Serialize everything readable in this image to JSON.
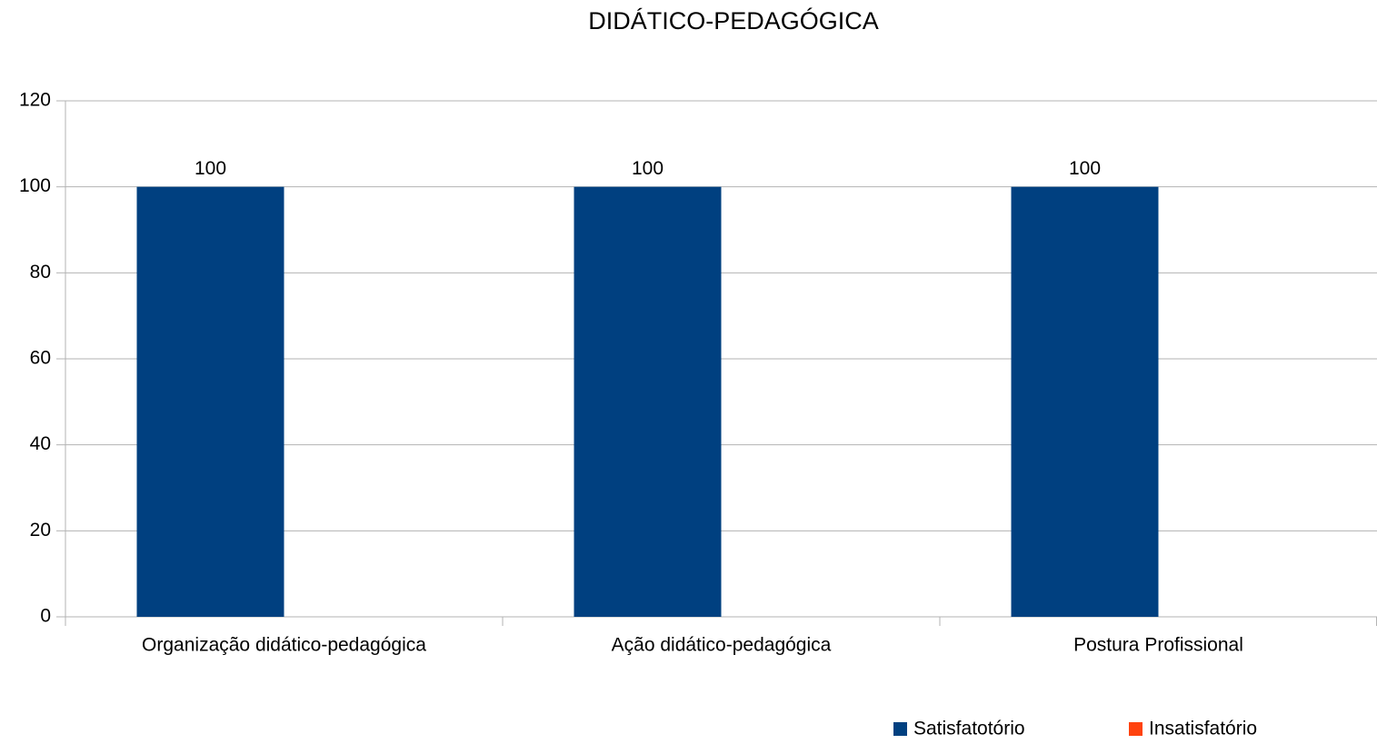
{
  "chart_data": {
    "type": "bar",
    "title": "DIDÁTICO-PEDAGÓGICA",
    "categories": [
      "Organização didático-pedagógica",
      "Ação didático-pedagógica",
      "Postura Profissional"
    ],
    "series": [
      {
        "name": "Satisfatotório",
        "color": "#004080",
        "values": [
          100,
          100,
          100
        ],
        "data_labels": true
      },
      {
        "name": "Insatisfatório",
        "color": "#ff420e",
        "values": [
          0,
          0,
          0
        ],
        "data_labels": false
      }
    ],
    "ylim": [
      0,
      120
    ],
    "yticks": [
      0,
      20,
      40,
      60,
      80,
      100,
      120
    ],
    "grid": true,
    "legend": "bottom-right"
  }
}
